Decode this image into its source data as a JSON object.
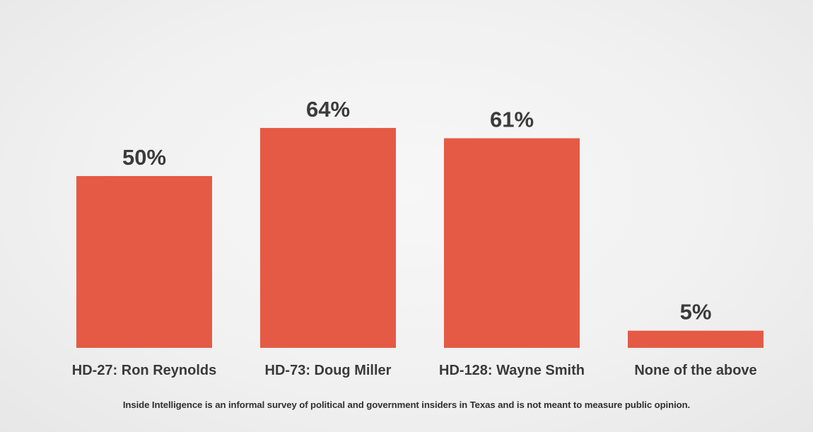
{
  "chart_data": {
    "type": "bar",
    "categories": [
      "HD-27: Ron Reynolds",
      "HD-73: Doug Miller",
      "HD-128: Wayne Smith",
      "None of the above"
    ],
    "values": [
      50,
      64,
      61,
      5
    ],
    "value_labels": [
      "50%",
      "64%",
      "61%",
      "5%"
    ],
    "ylim": [
      0,
      100
    ],
    "grid": false,
    "legend": "none",
    "bar_color": "#e55a45"
  },
  "footnote": "Inside Intelligence is an informal survey of political and government insiders in Texas and is not meant to measure public opinion."
}
